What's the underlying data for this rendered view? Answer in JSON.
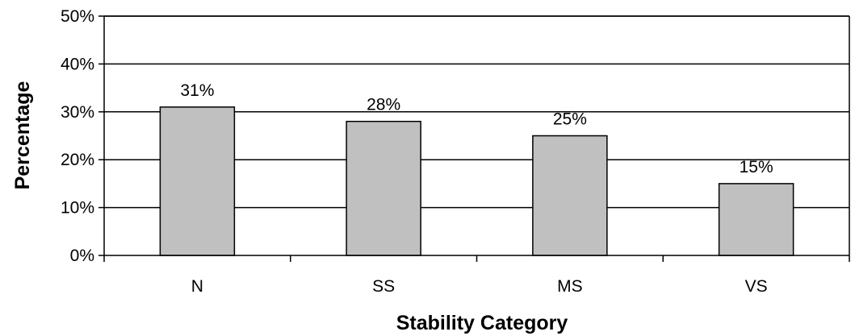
{
  "chart_data": {
    "type": "bar",
    "title": "",
    "xlabel": "Stability Category",
    "ylabel": "Percentage",
    "categories": [
      "N",
      "SS",
      "MS",
      "VS"
    ],
    "values": [
      31,
      28,
      25,
      15
    ],
    "value_labels": [
      "31%",
      "28%",
      "25%",
      "15%"
    ],
    "ylim": [
      0,
      50
    ],
    "yticks": [
      0,
      10,
      20,
      30,
      40,
      50
    ],
    "ytick_labels": [
      "0%",
      "10%",
      "20%",
      "30%",
      "40%",
      "50%"
    ],
    "grid": true,
    "legend": "none",
    "colors": {
      "bar_fill": "#c0c0c0",
      "bar_stroke": "#000000",
      "grid": "#000000",
      "axis": "#000000"
    }
  }
}
